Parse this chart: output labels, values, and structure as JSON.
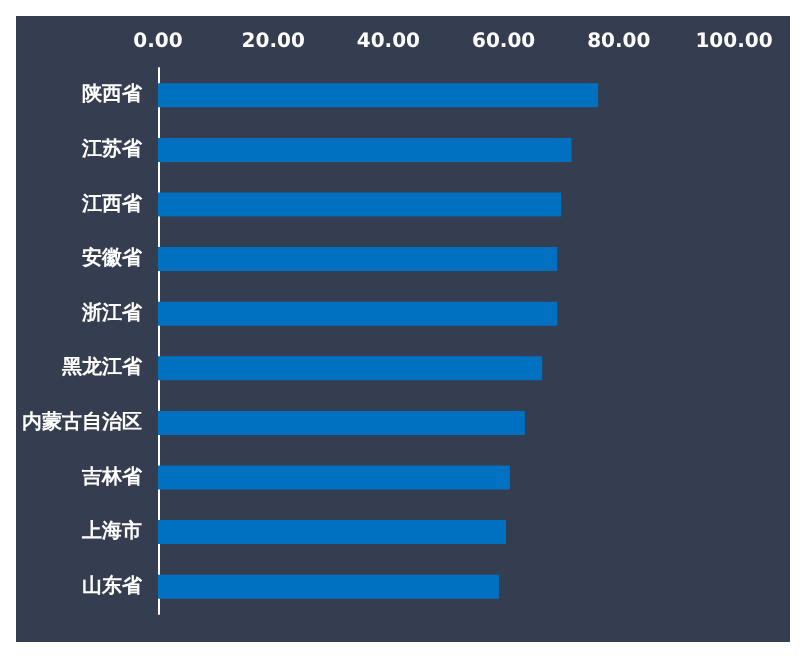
{
  "chart_data": {
    "type": "bar",
    "orientation": "horizontal",
    "categories": [
      "陕西省",
      "江苏省",
      "江西省",
      "安徽省",
      "浙江省",
      "黑龙江省",
      "内蒙古自治区",
      "吉林省",
      "上海市",
      "山东省"
    ],
    "values": [
      76.4,
      71.8,
      70.0,
      69.3,
      69.3,
      66.7,
      63.7,
      61.1,
      60.4,
      59.2
    ],
    "color": "#0070c0",
    "xlim": [
      0,
      100
    ],
    "xticks": [
      {
        "value": 0,
        "label": "0.00"
      },
      {
        "value": 20,
        "label": "20.00"
      },
      {
        "value": 40,
        "label": "40.00"
      },
      {
        "value": 60,
        "label": "60.00"
      },
      {
        "value": 80,
        "label": "80.00"
      },
      {
        "value": 100,
        "label": "100.00"
      }
    ],
    "grid": false
  }
}
